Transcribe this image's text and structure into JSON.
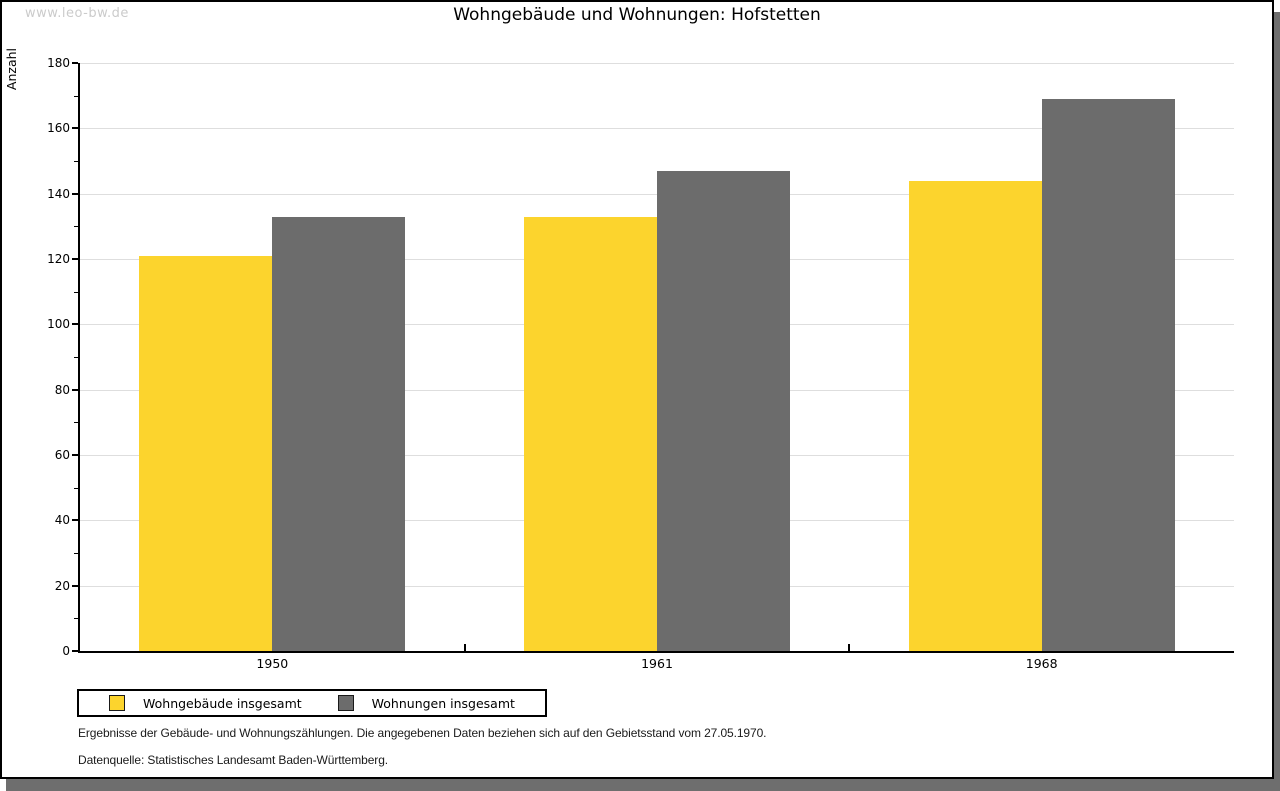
{
  "watermark": "www.leo-bw.de",
  "title": "Wohngebäude und Wohnungen: Hofstetten",
  "chart_data": {
    "type": "bar",
    "title": "Wohngebäude und Wohnungen: Hofstetten",
    "categories": [
      "1950",
      "1961",
      "1968"
    ],
    "series": [
      {
        "name": "Wohngebäude insgesamt",
        "color": "#FCD42D",
        "values": [
          121,
          133,
          144
        ]
      },
      {
        "name": "Wohnungen insgesamt",
        "color": "#6C6C6C",
        "values": [
          133,
          147,
          169
        ]
      }
    ],
    "xlabel": "",
    "ylabel": "Anzahl",
    "ylim": [
      0,
      180
    ],
    "ytick_step": 20,
    "yminor_step": 10,
    "grid": true,
    "gridline_color": "#dedede",
    "legend_position": "bottom-left"
  },
  "footer": {
    "line1": "Ergebnisse der Gebäude- und Wohnungszählungen. Die angegebenen Daten beziehen sich auf den Gebietsstand vom 27.05.1970.",
    "line2": "Datenquelle: Statistisches Landesamt Baden-Württemberg."
  },
  "frame": {
    "page_background": "#ffffff",
    "border_color": "#000000",
    "shadow_color": "#6e6e6e"
  }
}
